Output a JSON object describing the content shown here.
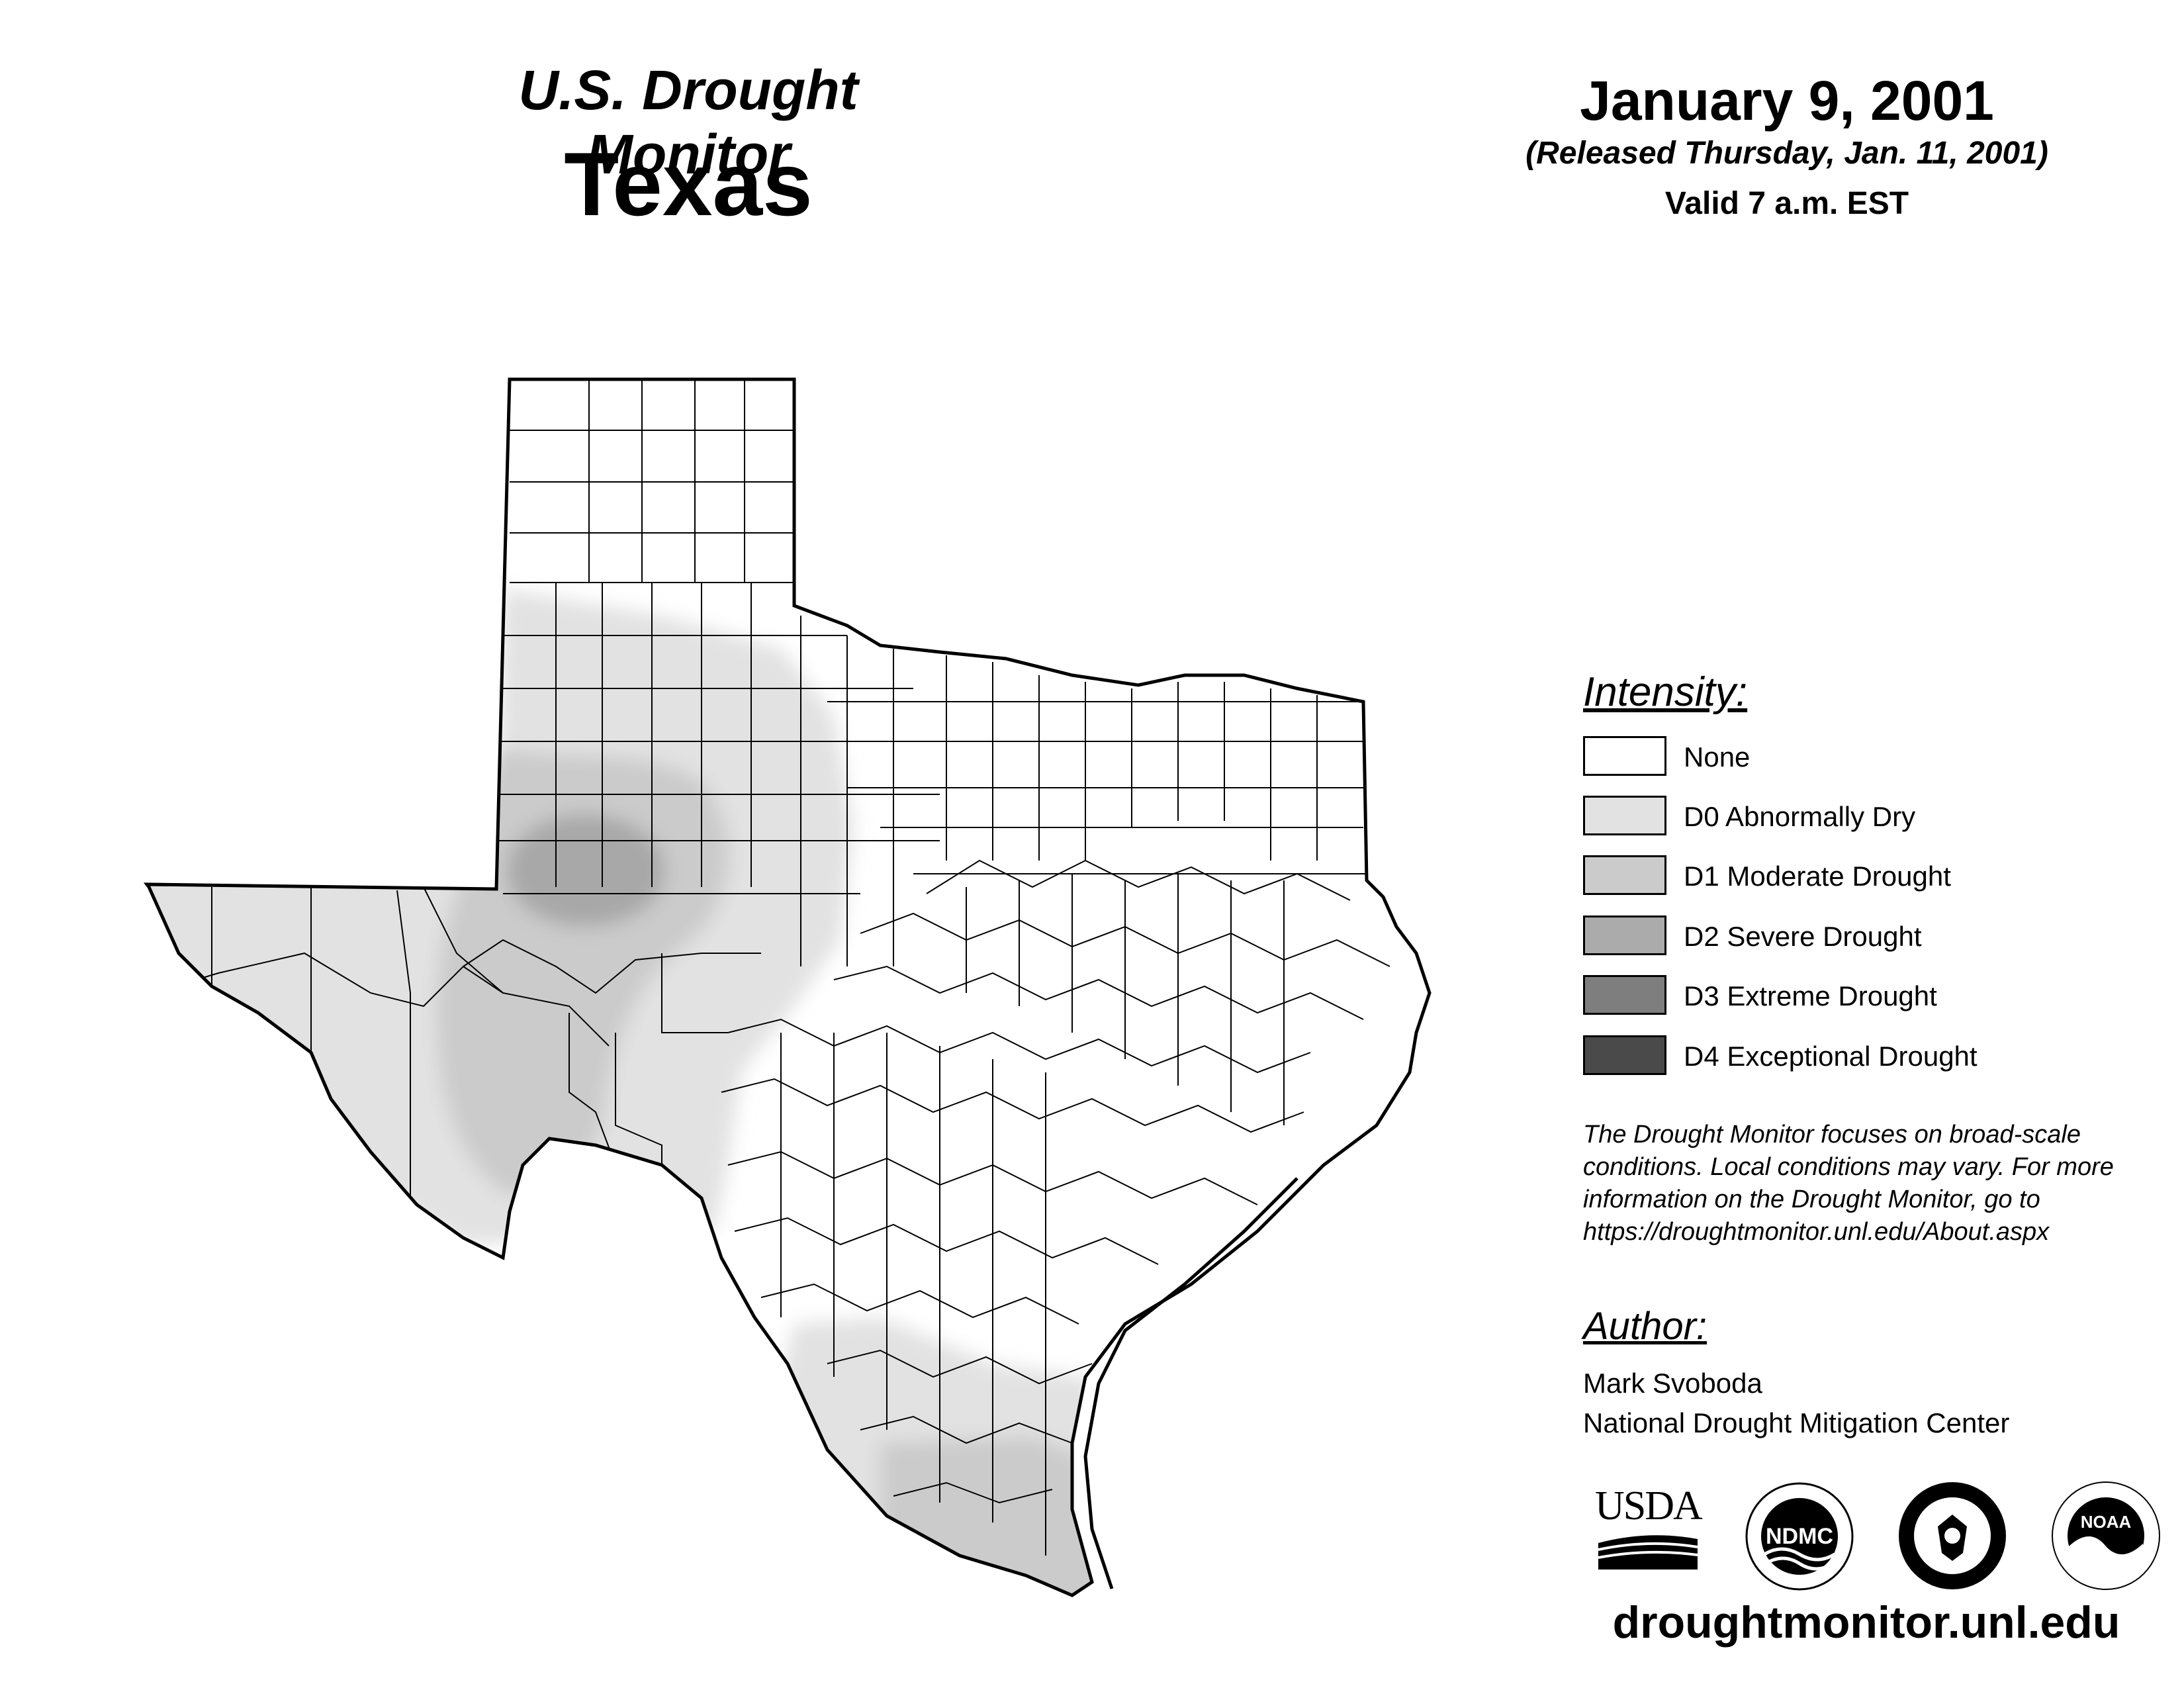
{
  "header": {
    "title": "U.S. Drought Monitor",
    "state": "Texas",
    "date": "January 9, 2001",
    "released": "(Released Thursday, Jan. 11, 2001)",
    "valid": "Valid 7 a.m. EST"
  },
  "legend": {
    "heading": "Intensity:",
    "items": [
      {
        "label": "None",
        "color": "#ffffff"
      },
      {
        "label": "D0 Abnormally Dry",
        "color": "#e2e2e2"
      },
      {
        "label": "D1 Moderate Drought",
        "color": "#cbcbcb"
      },
      {
        "label": "D2 Severe Drought",
        "color": "#ababab"
      },
      {
        "label": "D3 Extreme Drought",
        "color": "#7e7e7e"
      },
      {
        "label": "D4 Exceptional Drought",
        "color": "#4a4a4a"
      }
    ]
  },
  "note": {
    "line1": "The Drought Monitor focuses on broad-scale",
    "line2": "conditions. Local conditions may vary. For more",
    "line3": "information on the Drought Monitor, go to",
    "line4": "https://droughtmonitor.unl.edu/About.aspx"
  },
  "author": {
    "heading": "Author:",
    "name": "Mark Svoboda",
    "org": "National Drought Mitigation Center"
  },
  "logos": {
    "usda": "USDA",
    "ndmc": "NDMC",
    "noaa": "NOAA"
  },
  "footer": {
    "website": "droughtmonitor.unl.edu"
  }
}
